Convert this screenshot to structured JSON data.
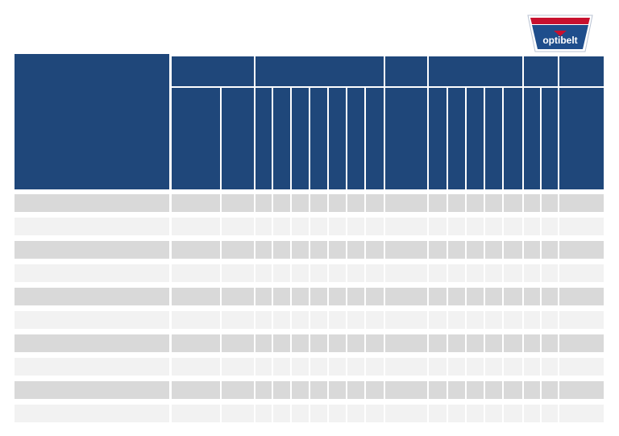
{
  "logo": {
    "text": "optibelt"
  }
}
